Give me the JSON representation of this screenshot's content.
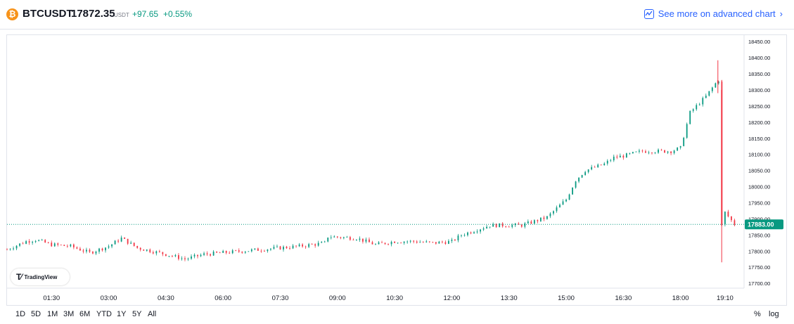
{
  "header": {
    "icon": "btc-icon",
    "symbol": "BTCUSDT",
    "price": "17872.35",
    "currency": "USDT",
    "change": "+97.65",
    "change_pct": "+0.55%",
    "advanced_label": "See more on advanced chart"
  },
  "watermark": {
    "label": "TradingView"
  },
  "ranges": [
    "1D",
    "5D",
    "1M",
    "3M",
    "6M",
    "YTD",
    "1Y",
    "5Y",
    "All"
  ],
  "options": {
    "percent": "%",
    "log": "log"
  },
  "colors": {
    "up": "#089981",
    "down": "#f23645",
    "price_line": "#089981",
    "accent": "#2962ff"
  },
  "chart_data": {
    "type": "candlestick",
    "symbol": "BTCUSDT",
    "last_price_label": "17883.00",
    "x_ticks": [
      "01:30",
      "03:00",
      "04:30",
      "06:00",
      "07:30",
      "09:00",
      "10:30",
      "12:00",
      "13:30",
      "15:00",
      "16:30",
      "18:00",
      "19:10"
    ],
    "y_ticks": [
      "18450.00",
      "18400.00",
      "18350.00",
      "18300.00",
      "18250.00",
      "18200.00",
      "18150.00",
      "18100.00",
      "18050.00",
      "18000.00",
      "17950.00",
      "17900.00",
      "17850.00",
      "17800.00",
      "17750.00",
      "17700.00"
    ],
    "ylim": [
      17685,
      18470
    ],
    "time_range_hours": [
      "00:20",
      "19:40"
    ],
    "price_path": [
      [
        "00:20",
        17805
      ],
      [
        "00:50",
        17830
      ],
      [
        "01:05",
        17835
      ],
      [
        "01:30",
        17820
      ],
      [
        "02:00",
        17815
      ],
      [
        "02:30",
        17795
      ],
      [
        "03:00",
        17815
      ],
      [
        "03:20",
        17840
      ],
      [
        "03:45",
        17810
      ],
      [
        "04:30",
        17790
      ],
      [
        "05:00",
        17775
      ],
      [
        "05:30",
        17790
      ],
      [
        "06:00",
        17795
      ],
      [
        "06:30",
        17800
      ],
      [
        "07:00",
        17805
      ],
      [
        "07:30",
        17810
      ],
      [
        "08:00",
        17815
      ],
      [
        "08:40",
        17825
      ],
      [
        "08:45",
        17845
      ],
      [
        "09:30",
        17840
      ],
      [
        "10:00",
        17820
      ],
      [
        "10:30",
        17830
      ],
      [
        "11:00",
        17830
      ],
      [
        "11:30",
        17825
      ],
      [
        "12:00",
        17830
      ],
      [
        "12:15",
        17850
      ],
      [
        "12:45",
        17870
      ],
      [
        "13:00",
        17880
      ],
      [
        "13:30",
        17880
      ],
      [
        "13:50",
        17880
      ],
      [
        "14:30",
        17905
      ],
      [
        "15:00",
        17960
      ],
      [
        "15:15",
        18020
      ],
      [
        "15:30",
        18050
      ],
      [
        "16:00",
        18070
      ],
      [
        "16:15",
        18090
      ],
      [
        "16:30",
        18095
      ],
      [
        "17:00",
        18110
      ],
      [
        "17:30",
        18110
      ],
      [
        "17:45",
        18110
      ],
      [
        "18:00",
        18120
      ],
      [
        "18:15",
        18230
      ],
      [
        "18:40",
        18280
      ],
      [
        "18:55",
        18320
      ],
      [
        "19:00",
        18330
      ],
      [
        "19:05",
        17880
      ],
      [
        "19:10",
        17920
      ],
      [
        "19:20",
        17895
      ],
      [
        "19:25",
        17883
      ]
    ]
  }
}
